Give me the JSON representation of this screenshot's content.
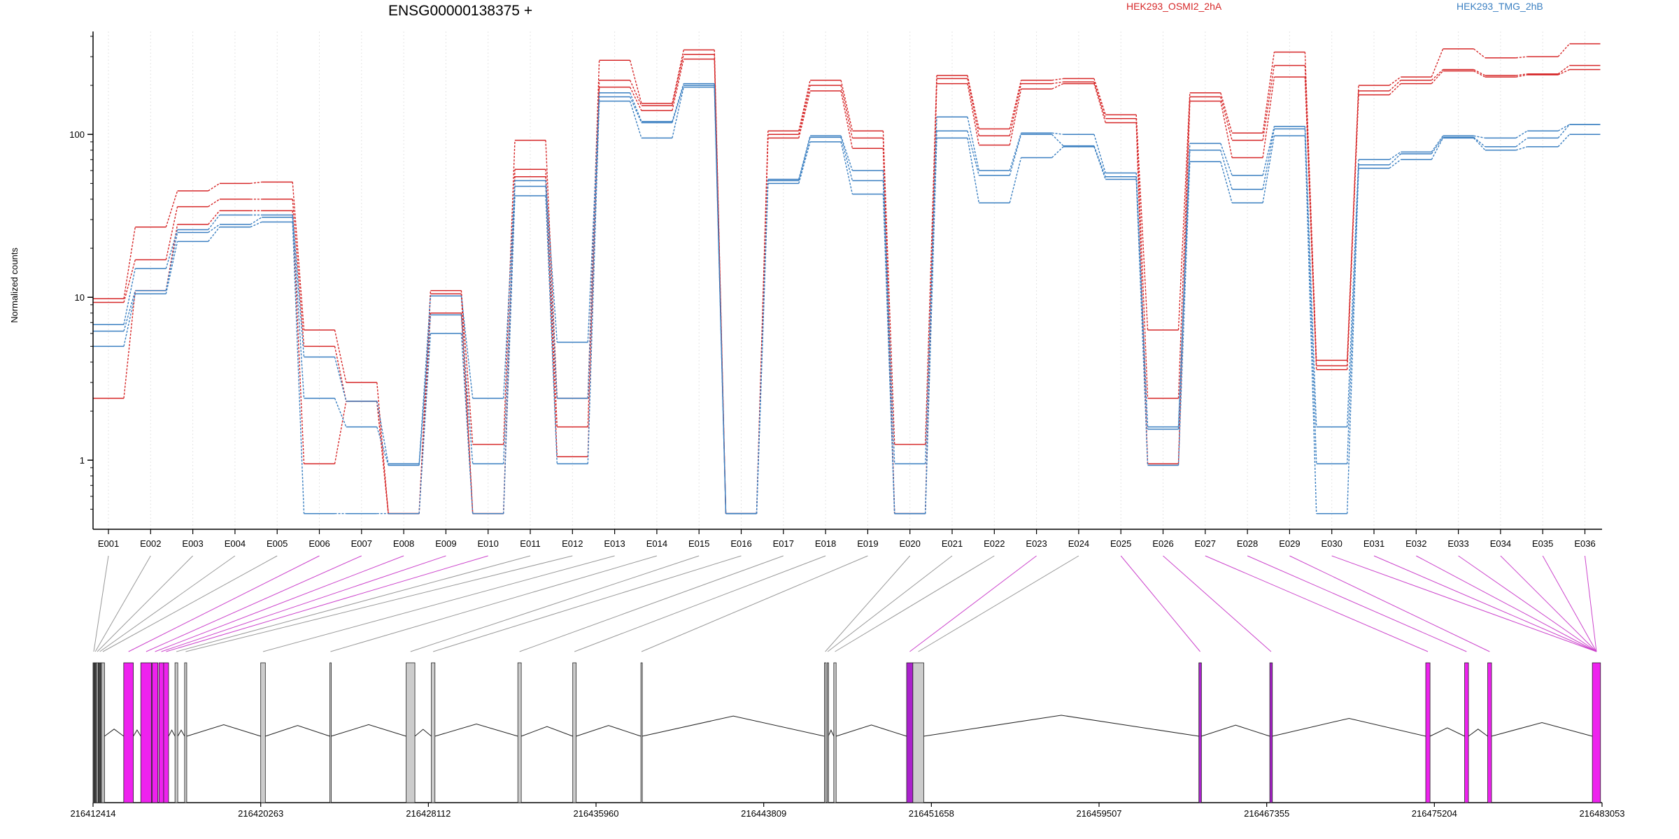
{
  "chart_data": {
    "type": "line",
    "title": "ENSG00000138375 +",
    "ylabel": "Normalized counts",
    "xlabel": "",
    "y_scale": "log",
    "ylim": [
      0.45,
      420
    ],
    "y_ticks": [
      1,
      10,
      100
    ],
    "y_tick_labels": [
      "1",
      "10",
      "100"
    ],
    "legend_placement": "top",
    "categories": [
      "E001",
      "E002",
      "E003",
      "E004",
      "E005",
      "E006",
      "E007",
      "E008",
      "E009",
      "E010",
      "E011",
      "E012",
      "E013",
      "E014",
      "E015",
      "E016",
      "E017",
      "E018",
      "E019",
      "E020",
      "E021",
      "E022",
      "E023",
      "E024",
      "E025",
      "E026",
      "E027",
      "E028",
      "E029",
      "E030",
      "E031",
      "E032",
      "E033",
      "E034",
      "E035",
      "E036"
    ],
    "groups": [
      {
        "name": "HEK293_OSMI2_2hA",
        "color": "#d62728"
      },
      {
        "name": "HEK293_TMG_2hB",
        "color": "#3a7fc1"
      }
    ],
    "series": [
      {
        "group": 0,
        "values": [
          9.8,
          27,
          45,
          50,
          51,
          6.3,
          3.0,
          0.47,
          11,
          1.25,
          92,
          2.4,
          285,
          155,
          330,
          0.47,
          105,
          215,
          105,
          1.25,
          230,
          108,
          215,
          220,
          132,
          6.3,
          180,
          102,
          320,
          4.1,
          200,
          225,
          335,
          295,
          300,
          360
        ]
      },
      {
        "group": 0,
        "values": [
          9.3,
          17,
          36,
          40,
          40,
          5.0,
          2.3,
          0.47,
          10.5,
          0.47,
          61,
          1.6,
          215,
          150,
          310,
          0.47,
          100,
          200,
          95,
          0.47,
          220,
          98,
          205,
          210,
          125,
          2.4,
          170,
          92,
          265,
          3.8,
          185,
          215,
          250,
          230,
          235,
          265
        ]
      },
      {
        "group": 0,
        "values": [
          2.4,
          11,
          28,
          34,
          34,
          0.95,
          2.3,
          0.47,
          8.0,
          0.47,
          55,
          1.05,
          195,
          140,
          290,
          0.47,
          95,
          185,
          82,
          0.47,
          205,
          86,
          190,
          205,
          118,
          0.95,
          160,
          72,
          225,
          3.6,
          175,
          205,
          245,
          225,
          232,
          250
        ]
      },
      {
        "group": 1,
        "values": [
          6.8,
          15,
          26,
          32,
          32,
          4.3,
          2.3,
          0.95,
          10.2,
          2.4,
          52,
          5.3,
          180,
          120,
          205,
          0.47,
          53,
          98,
          60,
          0.95,
          128,
          60,
          102,
          100,
          58,
          1.6,
          88,
          56,
          112,
          1.6,
          70,
          78,
          98,
          95,
          105,
          115
        ]
      },
      {
        "group": 1,
        "values": [
          6.2,
          11,
          25,
          28,
          31,
          2.4,
          1.6,
          0.93,
          7.8,
          0.95,
          48,
          2.4,
          170,
          118,
          200,
          0.47,
          52,
          96,
          52,
          0.47,
          105,
          56,
          100,
          85,
          55,
          1.55,
          80,
          46,
          108,
          0.95,
          65,
          76,
          96,
          84,
          95,
          115
        ]
      },
      {
        "group": 1,
        "values": [
          5.0,
          10.5,
          22,
          27,
          29,
          0.47,
          0.47,
          0.47,
          6.0,
          0.47,
          42,
          0.95,
          160,
          95,
          195,
          0.47,
          50,
          90,
          43,
          0.47,
          95,
          38,
          72,
          84,
          53,
          0.93,
          68,
          38,
          98,
          0.47,
          62,
          70,
          95,
          80,
          84,
          100
        ]
      }
    ],
    "gene_axis": {
      "tick_labels": [
        "216412414",
        "216420263",
        "216428112",
        "216435960",
        "216443809",
        "216451658",
        "216459507",
        "216467355",
        "216475204",
        "216483053"
      ],
      "range": [
        216412414,
        216483053
      ]
    },
    "exons": [
      {
        "id": "E001",
        "start": 216412414,
        "end": 216412480,
        "color": "#444444"
      },
      {
        "id": "E002",
        "start": 216412480,
        "end": 216412560,
        "color": "#444444"
      },
      {
        "id": "E003",
        "start": 216412560,
        "end": 216412660,
        "color": "#999999"
      },
      {
        "id": "E004",
        "start": 216412660,
        "end": 216412800,
        "color": "#444444"
      },
      {
        "id": "E005",
        "start": 216412800,
        "end": 216412950,
        "color": "#bbbbbb"
      },
      {
        "id": "E006",
        "start": 216413850,
        "end": 216414300,
        "color": "#ee22ee"
      },
      {
        "id": "E007",
        "start": 216414650,
        "end": 216415150,
        "color": "#ee22ee"
      },
      {
        "id": "E008",
        "start": 216415180,
        "end": 216415450,
        "color": "#ee22ee"
      },
      {
        "id": "E009",
        "start": 216415500,
        "end": 216415720,
        "color": "#ee22ee"
      },
      {
        "id": "E010",
        "start": 216415720,
        "end": 216415950,
        "color": "#ee22ee"
      },
      {
        "id": "E011",
        "start": 216416250,
        "end": 216416380,
        "color": "#cccccc"
      },
      {
        "id": "E012",
        "start": 216416700,
        "end": 216416800,
        "color": "#cccccc"
      },
      {
        "id": "E013",
        "start": 216420263,
        "end": 216420480,
        "color": "#cccccc"
      },
      {
        "id": "E014",
        "start": 216423500,
        "end": 216423560,
        "color": "#cccccc"
      },
      {
        "id": "E015",
        "start": 216427070,
        "end": 216427480,
        "color": "#cccccc"
      },
      {
        "id": "E016",
        "start": 216428250,
        "end": 216428420,
        "color": "#cccccc"
      },
      {
        "id": "E017",
        "start": 216432300,
        "end": 216432460,
        "color": "#cccccc"
      },
      {
        "id": "E018",
        "start": 216434870,
        "end": 216435030,
        "color": "#cccccc"
      },
      {
        "id": "E019",
        "start": 216438060,
        "end": 216438120,
        "color": "#cccccc"
      },
      {
        "id": "E020",
        "start": 216446650,
        "end": 216446730,
        "color": "#cccccc"
      },
      {
        "id": "E021",
        "start": 216446780,
        "end": 216446830,
        "color": "#cccccc"
      },
      {
        "id": "E022",
        "start": 216447090,
        "end": 216447200,
        "color": "#cccccc"
      },
      {
        "id": "E023",
        "start": 216450500,
        "end": 216450790,
        "color": "#aa22cc"
      },
      {
        "id": "E024",
        "start": 216450790,
        "end": 216451300,
        "color": "#cccccc"
      },
      {
        "id": "E025",
        "start": 216464180,
        "end": 216464300,
        "color": "#aa22cc"
      },
      {
        "id": "E026",
        "start": 216467500,
        "end": 216467620,
        "color": "#aa22cc"
      },
      {
        "id": "E027",
        "start": 216474800,
        "end": 216475000,
        "color": "#ee22ee"
      },
      {
        "id": "E028",
        "start": 216476620,
        "end": 216476800,
        "color": "#ee22ee"
      },
      {
        "id": "E029",
        "start": 216477700,
        "end": 216477880,
        "color": "#ee22ee"
      },
      {
        "id": "E030",
        "start": 216482600,
        "end": 216482980,
        "color": "#ee22ee"
      }
    ]
  }
}
